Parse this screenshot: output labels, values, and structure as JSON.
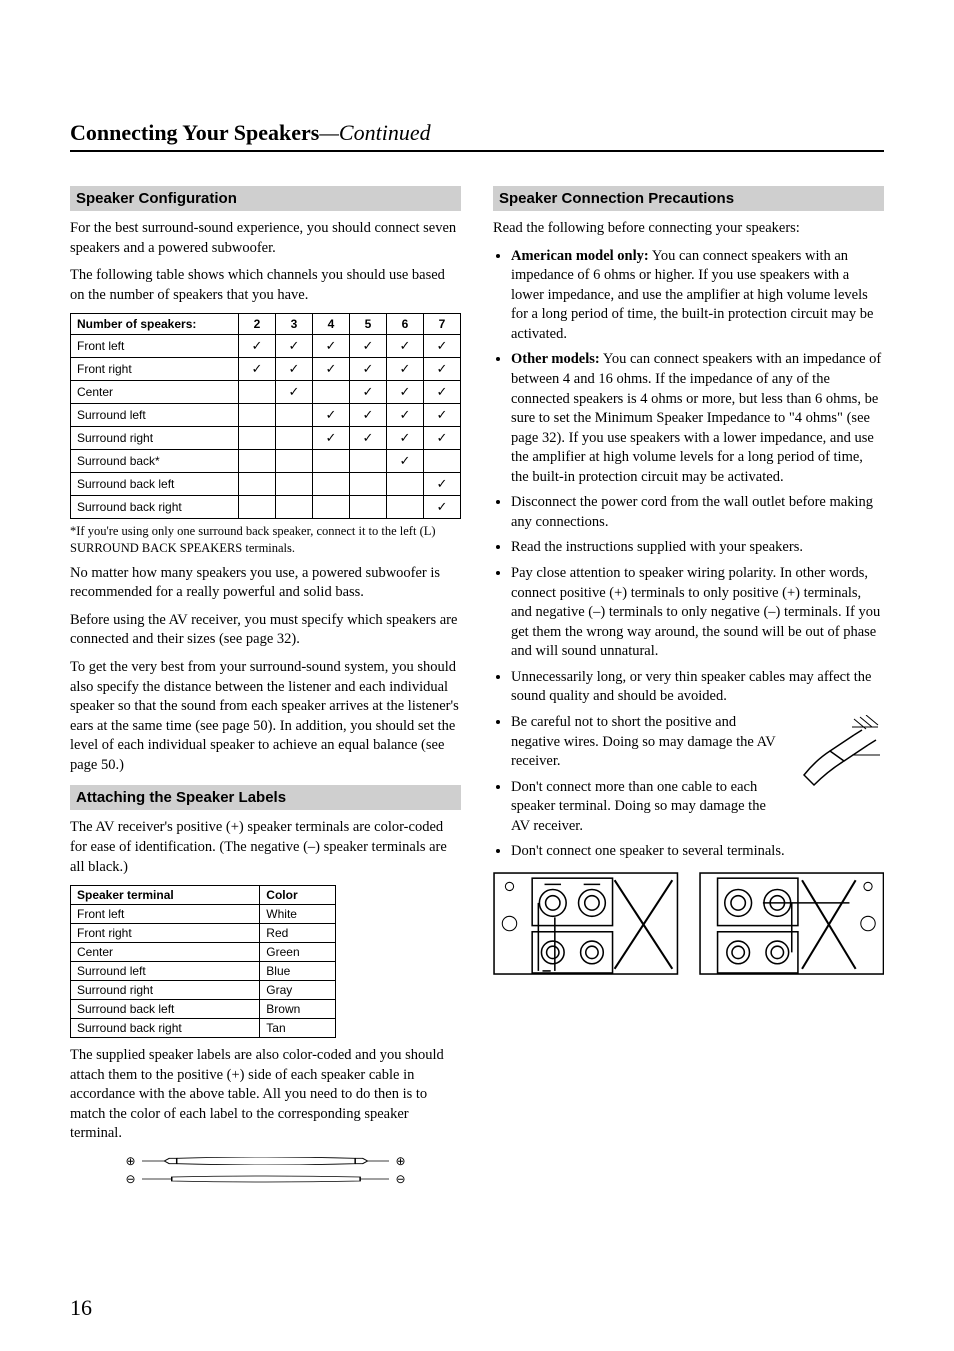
{
  "header": {
    "title": "Connecting Your Speakers",
    "continued": "—Continued"
  },
  "pageNumber": "16",
  "left": {
    "sec1": {
      "title": "Speaker Configuration",
      "p1": "For the best surround-sound experience, you should connect seven speakers and a powered subwoofer.",
      "p2": "The following table shows which channels you should use based on the number of speakers that you have.",
      "table": {
        "headLabel": "Number of speakers:",
        "cols": [
          "2",
          "3",
          "4",
          "5",
          "6",
          "7"
        ],
        "rows": [
          {
            "label": "Front left",
            "vals": [
              "✓",
              "✓",
              "✓",
              "✓",
              "✓",
              "✓"
            ]
          },
          {
            "label": "Front right",
            "vals": [
              "✓",
              "✓",
              "✓",
              "✓",
              "✓",
              "✓"
            ]
          },
          {
            "label": "Center",
            "vals": [
              "",
              "✓",
              "",
              "✓",
              "✓",
              "✓"
            ]
          },
          {
            "label": "Surround left",
            "vals": [
              "",
              "",
              "✓",
              "✓",
              "✓",
              "✓"
            ]
          },
          {
            "label": "Surround right",
            "vals": [
              "",
              "",
              "✓",
              "✓",
              "✓",
              "✓"
            ]
          },
          {
            "label": "Surround back*",
            "vals": [
              "",
              "",
              "",
              "",
              "✓",
              ""
            ]
          },
          {
            "label": "Surround back left",
            "vals": [
              "",
              "",
              "",
              "",
              "",
              "✓"
            ]
          },
          {
            "label": "Surround back right",
            "vals": [
              "",
              "",
              "",
              "",
              "",
              "✓"
            ]
          }
        ]
      },
      "footnote": "*If you're using only one surround back speaker, connect it to the left (L) SURROUND BACK SPEAKERS terminals.",
      "p3": "No matter how many speakers you use, a powered subwoofer is recommended for a really powerful and solid bass.",
      "p4": "Before using the AV receiver, you must specify which speakers are connected and their sizes (see page 32).",
      "p5": "To get the very best from your surround-sound system, you should also specify the distance between the listener and each individual speaker so that the sound from each speaker arrives at the listener's ears at the same time (see page 50). In addition, you should set the level of each individual speaker to achieve an equal balance (see page 50.)"
    },
    "sec2": {
      "title": "Attaching the Speaker Labels",
      "p1": "The AV receiver's positive (+) speaker terminals are color-coded for ease of identification. (The negative (–) speaker terminals are all black.)",
      "table": {
        "head": [
          "Speaker terminal",
          "Color"
        ],
        "rows": [
          [
            "Front left",
            "White"
          ],
          [
            "Front right",
            "Red"
          ],
          [
            "Center",
            "Green"
          ],
          [
            "Surround left",
            "Blue"
          ],
          [
            "Surround right",
            "Gray"
          ],
          [
            "Surround back left",
            "Brown"
          ],
          [
            "Surround back right",
            "Tan"
          ]
        ]
      },
      "p2": "The supplied speaker labels are also color-coded and you should attach them to the positive (+) side of each speaker cable in accordance with the above table. All you need to do then is to match the color of each label to the corresponding speaker terminal.",
      "fig": {
        "plus": "⊕",
        "minus": "⊖"
      }
    }
  },
  "right": {
    "sec1": {
      "title": "Speaker Connection Precautions",
      "intro": "Read the following before connecting your speakers:",
      "items": [
        {
          "lead": "American model only:",
          "text": " You can connect speakers with an impedance of 6 ohms or higher. If you use speakers with a lower impedance, and use the amplifier at high volume levels for a long period of time, the built-in protection circuit may be activated."
        },
        {
          "lead": "Other models:",
          "text": " You can connect speakers with an impedance of between 4 and 16 ohms. If the impedance of any of the connected speakers is 4 ohms or more, but less than 6 ohms, be sure to set the Minimum Speaker Impedance to \"4 ohms\" (see page 32). If you use speakers with a lower impedance, and use the amplifier at high volume levels for a long period of time, the built-in protection circuit may be activated."
        },
        {
          "text": "Disconnect the power cord from the wall outlet before making any connections."
        },
        {
          "text": "Read the instructions supplied with your speakers."
        },
        {
          "text": "Pay close attention to speaker wiring polarity. In other words, connect positive (+) terminals to only positive (+) terminals, and negative (–) terminals to only negative (–) terminals. If you get them the wrong way around, the sound will be out of phase and will sound unnatural."
        },
        {
          "text": "Unnecessarily long, or very thin speaker cables may affect the sound quality and should be avoided."
        },
        {
          "text": "Be careful not to short the positive and negative wires. Doing so may damage the AV receiver.",
          "hasFig": true
        },
        {
          "text": "Don't connect more than one cable to each speaker terminal. Doing so may damage the AV receiver."
        },
        {
          "text": "Don't connect one speaker to several terminals."
        }
      ]
    }
  }
}
